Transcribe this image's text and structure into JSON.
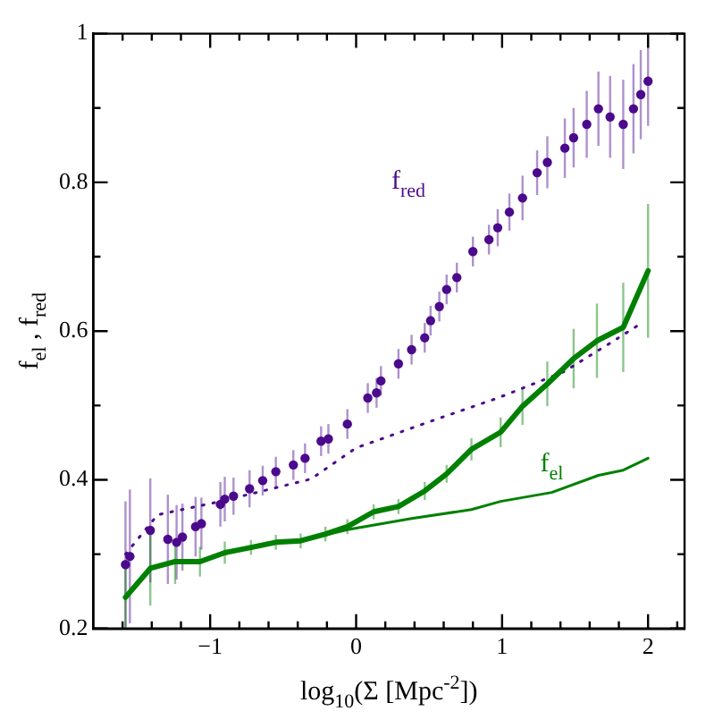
{
  "chart_data": {
    "type": "line",
    "xlabel": "log$_{10}$(Σ [Mpc$^{-2}$])",
    "ylabel": "f$_{el}$ , f$_{red}$",
    "xlim": [
      -1.8,
      2.25
    ],
    "ylim": [
      0.2,
      1
    ],
    "xticks": [
      {
        "value": -1.6,
        "label": null
      },
      {
        "value": -1.4,
        "label": null
      },
      {
        "value": -1.2,
        "label": null
      },
      {
        "value": -1,
        "label": "−1"
      },
      {
        "value": -0.8,
        "label": null
      },
      {
        "value": -0.6,
        "label": null
      },
      {
        "value": -0.4,
        "label": null
      },
      {
        "value": -0.2,
        "label": null
      },
      0,
      {
        "value": 0.2,
        "label": null
      },
      {
        "value": 0.4,
        "label": null
      },
      {
        "value": 0.6,
        "label": null
      },
      {
        "value": 0.8,
        "label": null
      },
      1,
      {
        "value": 1.2,
        "label": null
      },
      {
        "value": 1.4,
        "label": null
      },
      {
        "value": 1.6,
        "label": null
      },
      {
        "value": 1.8,
        "label": null
      },
      2,
      {
        "value": 2.2,
        "label": null
      }
    ],
    "yticks": [
      0.2,
      {
        "value": 0.3,
        "label": null
      },
      0.4,
      {
        "value": 0.5,
        "label": null
      },
      0.6,
      {
        "value": 0.7,
        "label": null
      },
      0.8,
      {
        "value": 0.9,
        "label": null
      },
      1
    ],
    "grid": false,
    "legend": false,
    "series": [
      {
        "type": "scatter",
        "name": "f$_{red}$",
        "color": "#4b0a8c",
        "marker": "circle",
        "x": [
          -1.58,
          -1.55,
          -1.41,
          -1.29,
          -1.23,
          -1.19,
          -1.1,
          -1.06,
          -0.93,
          -0.9,
          -0.84,
          -0.73,
          -0.64,
          -0.55,
          -0.43,
          -0.35,
          -0.24,
          -0.19,
          -0.06,
          0.08,
          0.14,
          0.17,
          0.29,
          0.38,
          0.47,
          0.51,
          0.57,
          0.62,
          0.69,
          0.8,
          0.91,
          0.97,
          1.05,
          1.14,
          1.24,
          1.31,
          1.43,
          1.49,
          1.58,
          1.66,
          1.74,
          1.83,
          1.9,
          1.95,
          2.0
        ],
        "values": [
          0.286,
          0.297,
          0.332,
          0.32,
          0.316,
          0.323,
          0.337,
          0.341,
          0.367,
          0.374,
          0.378,
          0.388,
          0.399,
          0.411,
          0.42,
          0.429,
          0.452,
          0.455,
          0.475,
          0.51,
          0.517,
          0.533,
          0.556,
          0.575,
          0.591,
          0.614,
          0.633,
          0.656,
          0.672,
          0.707,
          0.723,
          0.739,
          0.76,
          0.779,
          0.813,
          0.827,
          0.846,
          0.86,
          0.878,
          0.899,
          0.888,
          0.878,
          0.899,
          0.918,
          0.936
        ],
        "errors": [
          0.085,
          0.09,
          0.07,
          0.06,
          0.05,
          0.045,
          0.04,
          0.035,
          0.03,
          0.03,
          0.025,
          0.025,
          0.02,
          0.02,
          0.02,
          0.02,
          0.02,
          0.02,
          0.02,
          0.02,
          0.02,
          0.02,
          0.02,
          0.02,
          0.02,
          0.02,
          0.02,
          0.02,
          0.02,
          0.02,
          0.02,
          0.025,
          0.025,
          0.03,
          0.03,
          0.035,
          0.04,
          0.04,
          0.045,
          0.05,
          0.055,
          0.06,
          0.06,
          0.06,
          0.06
        ]
      },
      {
        "color": "#008000",
        "marker": "none",
        "line_style": "solid",
        "x": [
          -1.58,
          -1.41,
          -1.24,
          -1.07,
          -0.9,
          -0.72,
          -0.55,
          -0.38,
          -0.21,
          -0.06,
          0.12,
          0.29,
          0.47,
          0.62,
          0.79,
          0.99,
          1.14,
          1.31,
          1.49,
          1.65,
          1.83,
          2.0
        ],
        "values": [
          0.242,
          0.281,
          0.29,
          0.29,
          0.302,
          0.309,
          0.316,
          0.318,
          0.327,
          0.337,
          0.357,
          0.364,
          0.385,
          0.408,
          0.441,
          0.464,
          0.499,
          0.529,
          0.563,
          0.587,
          0.605,
          0.681
        ],
        "errors": [
          0.04,
          0.05,
          0.03,
          0.02,
          0.015,
          0.01,
          0.01,
          0.01,
          0.01,
          0.01,
          0.01,
          0.01,
          0.012,
          0.012,
          0.015,
          0.02,
          0.025,
          0.03,
          0.04,
          0.05,
          0.06,
          0.09
        ]
      },
      {
        "name": "f$_{el}$",
        "color": "#008000",
        "marker": "none",
        "line_style": "solid",
        "x": [
          -0.38,
          -0.06,
          0.38,
          0.79,
          0.99,
          1.34,
          1.66,
          1.83,
          2.0
        ],
        "values": [
          0.318,
          0.333,
          0.348,
          0.36,
          0.371,
          0.383,
          0.406,
          0.413,
          0.429
        ]
      },
      {
        "color": "#4b0a8c",
        "marker": "none",
        "line_style": "dotted",
        "x": [
          -1.58,
          -1.36,
          -0.93,
          -0.31,
          0,
          0.23,
          0.5,
          0.97,
          1.42,
          1.75,
          1.95
        ],
        "values": [
          0.3,
          0.353,
          0.371,
          0.401,
          0.443,
          0.459,
          0.478,
          0.51,
          0.545,
          0.585,
          0.61
        ]
      }
    ]
  }
}
